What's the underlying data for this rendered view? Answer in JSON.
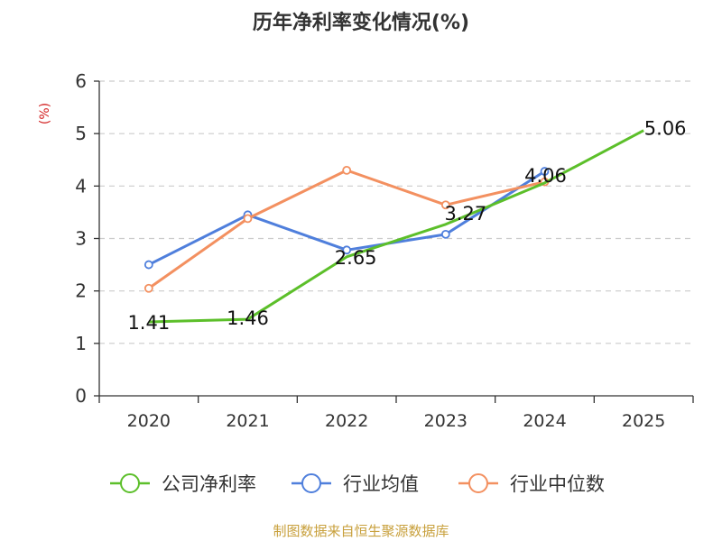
{
  "chart_data": {
    "type": "line",
    "title": "历年净利率变化情况(%)",
    "ylabel": "(%)",
    "xlabel": "",
    "ylim": [
      0,
      6
    ],
    "yticks": [
      "0",
      "1",
      "2",
      "3",
      "4",
      "5",
      "6"
    ],
    "categories": [
      "2020",
      "2021",
      "2022",
      "2023",
      "2024",
      "2025"
    ],
    "grid": true,
    "legend_position": "bottom",
    "series": [
      {
        "name": "公司净利率",
        "color": "#5cbf2a",
        "values": [
          1.41,
          1.46,
          2.65,
          3.27,
          4.06,
          5.06
        ],
        "labels": [
          "1.41",
          "1.46",
          "2.65",
          "3.27",
          "4.06",
          "5.06"
        ]
      },
      {
        "name": "行业均值",
        "color": "#4f7fdc",
        "values": [
          2.5,
          3.45,
          2.78,
          3.08,
          4.28,
          null
        ]
      },
      {
        "name": "行业中位数",
        "color": "#f39060",
        "values": [
          2.05,
          3.38,
          4.3,
          3.64,
          4.08,
          null
        ]
      }
    ],
    "source": "制图数据来自恒生聚源数据库"
  }
}
